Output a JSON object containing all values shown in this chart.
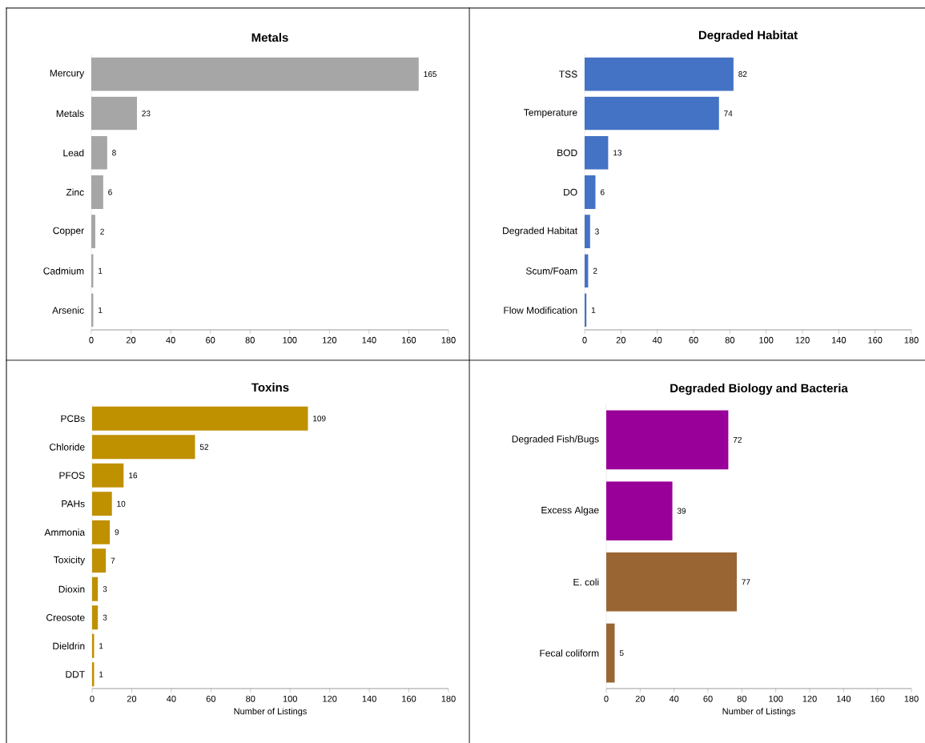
{
  "chart_data": [
    {
      "type": "bar",
      "orientation": "horizontal",
      "title": "Metals",
      "categories": [
        "Mercury",
        "Metals",
        "Lead",
        "Zinc",
        "Copper",
        "Cadmium",
        "Arsenic"
      ],
      "values": [
        165,
        23,
        8,
        6,
        2,
        1,
        1
      ],
      "color": "#a6a6a6",
      "xlim": [
        0,
        180
      ],
      "xticks": [
        0,
        20,
        40,
        60,
        80,
        100,
        120,
        140,
        160,
        180
      ],
      "data_labels": true
    },
    {
      "type": "bar",
      "orientation": "horizontal",
      "title": "Degraded Habitat",
      "categories": [
        "TSS",
        "Temperature",
        "BOD",
        "DO",
        "Degraded Habitat",
        "Scum/Foam",
        "Flow Modification"
      ],
      "values": [
        82,
        74,
        13,
        6,
        3,
        2,
        1
      ],
      "color": "#4472c4",
      "xlim": [
        0,
        180
      ],
      "xticks": [
        0,
        20,
        40,
        60,
        80,
        100,
        120,
        140,
        160,
        180
      ],
      "data_labels": true
    },
    {
      "type": "bar",
      "orientation": "horizontal",
      "title": "Toxins",
      "xlabel": "Number of Listings",
      "categories": [
        "PCBs",
        "Chloride",
        "PFOS",
        "PAHs",
        "Ammonia",
        "Toxicity",
        "Dioxin",
        "Creosote",
        "Dieldrin",
        "DDT"
      ],
      "values": [
        109,
        52,
        16,
        10,
        9,
        7,
        3,
        3,
        1,
        1
      ],
      "color": "#bf9000",
      "xlim": [
        0,
        180
      ],
      "xticks": [
        0,
        20,
        40,
        60,
        80,
        100,
        120,
        140,
        160,
        180
      ],
      "data_labels": true
    },
    {
      "type": "bar",
      "orientation": "horizontal",
      "title": "Degraded Biology and Bacteria",
      "xlabel": "Number of Listings",
      "categories": [
        "Degraded Fish/Bugs",
        "Excess Algae",
        "E. coli",
        "Fecal coliform"
      ],
      "values": [
        72,
        39,
        77,
        5
      ],
      "colors": [
        "#990099",
        "#990099",
        "#996633",
        "#996633"
      ],
      "xlim": [
        0,
        180
      ],
      "xticks": [
        0,
        20,
        40,
        60,
        80,
        100,
        120,
        140,
        160,
        180
      ],
      "data_labels": true
    }
  ]
}
